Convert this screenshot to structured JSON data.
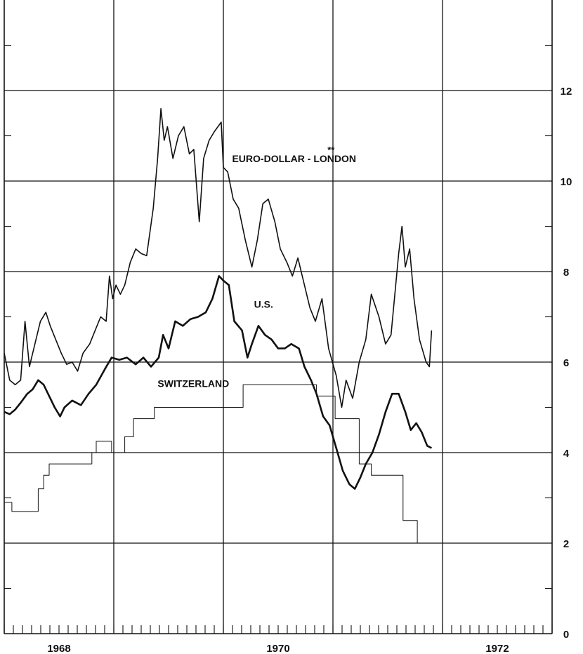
{
  "chart_data": {
    "type": "line",
    "title": "",
    "xlabel": "",
    "ylabel": "",
    "xlim": [
      1967.0,
      1972.0
    ],
    "ylim": [
      0,
      14
    ],
    "x_tick_labels": [
      {
        "label": "1968",
        "x": 1967.5
      },
      {
        "label": "1970",
        "x": 1969.5
      },
      {
        "label": "1972",
        "x": 1971.5
      }
    ],
    "y_tick_labels": [
      "0",
      "2",
      "4",
      "6",
      "8",
      "10",
      "12"
    ],
    "y_ticks": [
      0,
      2,
      4,
      6,
      8,
      10,
      12
    ],
    "grid": true,
    "series": [
      {
        "name": "EURO-DOLLAR - LONDON **",
        "stroke_width": 1.6,
        "points": [
          [
            1967.0,
            6.2
          ],
          [
            1967.05,
            5.6
          ],
          [
            1967.1,
            5.5
          ],
          [
            1967.15,
            5.6
          ],
          [
            1967.19,
            6.9
          ],
          [
            1967.23,
            5.9
          ],
          [
            1967.28,
            6.4
          ],
          [
            1967.33,
            6.9
          ],
          [
            1967.38,
            7.1
          ],
          [
            1967.42,
            6.8
          ],
          [
            1967.47,
            6.5
          ],
          [
            1967.52,
            6.2
          ],
          [
            1967.57,
            5.95
          ],
          [
            1967.62,
            6.0
          ],
          [
            1967.67,
            5.8
          ],
          [
            1967.72,
            6.2
          ],
          [
            1967.78,
            6.4
          ],
          [
            1967.83,
            6.7
          ],
          [
            1967.88,
            7.0
          ],
          [
            1967.93,
            6.9
          ],
          [
            1967.96,
            7.9
          ],
          [
            1967.99,
            7.4
          ],
          [
            1968.02,
            7.7
          ],
          [
            1968.06,
            7.5
          ],
          [
            1968.1,
            7.7
          ],
          [
            1968.15,
            8.2
          ],
          [
            1968.2,
            8.5
          ],
          [
            1968.25,
            8.4
          ],
          [
            1968.3,
            8.35
          ],
          [
            1968.36,
            9.4
          ],
          [
            1968.4,
            10.5
          ],
          [
            1968.43,
            11.6
          ],
          [
            1968.46,
            10.9
          ],
          [
            1968.49,
            11.2
          ],
          [
            1968.54,
            10.5
          ],
          [
            1968.59,
            11.0
          ],
          [
            1968.64,
            11.2
          ],
          [
            1968.69,
            10.6
          ],
          [
            1968.73,
            10.7
          ],
          [
            1968.78,
            9.1
          ],
          [
            1968.82,
            10.5
          ],
          [
            1968.87,
            10.9
          ],
          [
            1968.92,
            11.1
          ],
          [
            1968.98,
            11.3
          ],
          [
            1969.0,
            10.3
          ],
          [
            1969.04,
            10.2
          ],
          [
            1969.09,
            9.6
          ],
          [
            1969.14,
            9.4
          ],
          [
            1969.2,
            8.7
          ],
          [
            1969.26,
            8.1
          ],
          [
            1969.31,
            8.7
          ],
          [
            1969.36,
            9.5
          ],
          [
            1969.41,
            9.6
          ],
          [
            1969.47,
            9.1
          ],
          [
            1969.52,
            8.5
          ],
          [
            1969.58,
            8.2
          ],
          [
            1969.63,
            7.9
          ],
          [
            1969.68,
            8.3
          ],
          [
            1969.73,
            7.8
          ],
          [
            1969.79,
            7.2
          ],
          [
            1969.84,
            6.9
          ],
          [
            1969.9,
            7.4
          ],
          [
            1969.96,
            6.3
          ],
          [
            1970.03,
            5.7
          ],
          [
            1970.08,
            5.0
          ],
          [
            1970.12,
            5.6
          ],
          [
            1970.18,
            5.2
          ],
          [
            1970.24,
            6.0
          ],
          [
            1970.3,
            6.5
          ],
          [
            1970.35,
            7.5
          ],
          [
            1970.42,
            7.0
          ],
          [
            1970.48,
            6.4
          ],
          [
            1970.53,
            6.6
          ],
          [
            1970.6,
            8.4
          ],
          [
            1970.63,
            9.0
          ],
          [
            1970.66,
            8.1
          ],
          [
            1970.7,
            8.5
          ],
          [
            1970.74,
            7.4
          ],
          [
            1970.79,
            6.5
          ],
          [
            1970.85,
            6.0
          ],
          [
            1970.88,
            5.9
          ],
          [
            1970.9,
            6.7
          ]
        ]
      },
      {
        "name": "U.S.",
        "stroke_width": 2.6,
        "points": [
          [
            1967.0,
            4.9
          ],
          [
            1967.05,
            4.85
          ],
          [
            1967.1,
            4.95
          ],
          [
            1967.15,
            5.1
          ],
          [
            1967.21,
            5.3
          ],
          [
            1967.26,
            5.4
          ],
          [
            1967.31,
            5.6
          ],
          [
            1967.36,
            5.5
          ],
          [
            1967.41,
            5.25
          ],
          [
            1967.46,
            5.0
          ],
          [
            1967.51,
            4.8
          ],
          [
            1967.55,
            5.0
          ],
          [
            1967.62,
            5.15
          ],
          [
            1967.7,
            5.05
          ],
          [
            1967.77,
            5.3
          ],
          [
            1967.84,
            5.5
          ],
          [
            1967.92,
            5.85
          ],
          [
            1967.98,
            6.1
          ],
          [
            1968.05,
            6.05
          ],
          [
            1968.12,
            6.1
          ],
          [
            1968.2,
            5.95
          ],
          [
            1968.27,
            6.1
          ],
          [
            1968.34,
            5.9
          ],
          [
            1968.41,
            6.1
          ],
          [
            1968.45,
            6.6
          ],
          [
            1968.5,
            6.3
          ],
          [
            1968.56,
            6.9
          ],
          [
            1968.63,
            6.8
          ],
          [
            1968.7,
            6.95
          ],
          [
            1968.77,
            7.0
          ],
          [
            1968.84,
            7.1
          ],
          [
            1968.9,
            7.4
          ],
          [
            1968.96,
            7.9
          ],
          [
            1969.0,
            7.8
          ],
          [
            1969.05,
            7.7
          ],
          [
            1969.1,
            6.9
          ],
          [
            1969.17,
            6.7
          ],
          [
            1969.22,
            6.1
          ],
          [
            1969.26,
            6.4
          ],
          [
            1969.32,
            6.8
          ],
          [
            1969.38,
            6.6
          ],
          [
            1969.44,
            6.5
          ],
          [
            1969.5,
            6.3
          ],
          [
            1969.56,
            6.3
          ],
          [
            1969.62,
            6.4
          ],
          [
            1969.69,
            6.3
          ],
          [
            1969.74,
            5.9
          ],
          [
            1969.8,
            5.6
          ],
          [
            1969.85,
            5.3
          ],
          [
            1969.91,
            4.8
          ],
          [
            1969.97,
            4.6
          ],
          [
            1970.03,
            4.1
          ],
          [
            1970.09,
            3.6
          ],
          [
            1970.15,
            3.3
          ],
          [
            1970.2,
            3.2
          ],
          [
            1970.25,
            3.45
          ],
          [
            1970.3,
            3.75
          ],
          [
            1970.36,
            4.0
          ],
          [
            1970.42,
            4.4
          ],
          [
            1970.48,
            4.9
          ],
          [
            1970.54,
            5.3
          ],
          [
            1970.6,
            5.3
          ],
          [
            1970.66,
            4.9
          ],
          [
            1970.71,
            4.5
          ],
          [
            1970.76,
            4.65
          ],
          [
            1970.81,
            4.45
          ],
          [
            1970.86,
            4.15
          ],
          [
            1970.9,
            4.1
          ]
        ]
      },
      {
        "name": "SWITZERLAND",
        "stroke_width": 1.0,
        "points": [
          [
            1967.0,
            3.75
          ],
          [
            1967.0,
            2.9
          ],
          [
            1967.07,
            2.9
          ],
          [
            1967.07,
            2.7
          ],
          [
            1967.31,
            2.7
          ],
          [
            1967.31,
            3.2
          ],
          [
            1967.36,
            3.2
          ],
          [
            1967.36,
            3.5
          ],
          [
            1967.41,
            3.5
          ],
          [
            1967.41,
            3.75
          ],
          [
            1967.8,
            3.75
          ],
          [
            1967.8,
            4.0
          ],
          [
            1967.84,
            4.0
          ],
          [
            1967.84,
            4.25
          ],
          [
            1967.98,
            4.25
          ],
          [
            1967.98,
            4.0
          ],
          [
            1968.1,
            4.0
          ],
          [
            1968.1,
            4.35
          ],
          [
            1968.18,
            4.35
          ],
          [
            1968.18,
            4.75
          ],
          [
            1968.37,
            4.75
          ],
          [
            1968.37,
            5.0
          ],
          [
            1969.18,
            5.0
          ],
          [
            1969.18,
            5.5
          ],
          [
            1969.85,
            5.5
          ],
          [
            1969.85,
            5.25
          ],
          [
            1970.02,
            5.25
          ],
          [
            1970.02,
            4.75
          ],
          [
            1970.24,
            4.75
          ],
          [
            1970.24,
            3.75
          ],
          [
            1970.35,
            3.75
          ],
          [
            1970.35,
            3.5
          ],
          [
            1970.64,
            3.5
          ],
          [
            1970.64,
            2.5
          ],
          [
            1970.77,
            2.5
          ],
          [
            1970.77,
            2.0
          ],
          [
            1970.9,
            2.0
          ]
        ]
      }
    ],
    "annotations": [
      {
        "text": "EURO-DOLLAR - LONDON",
        "x": 1969.08,
        "y": 10.42
      },
      {
        "text": "**",
        "x": 1969.95,
        "y": 10.62
      },
      {
        "text": "U.S.",
        "x": 1969.28,
        "y": 7.2
      },
      {
        "text": "SWITZERLAND",
        "x": 1968.4,
        "y": 5.45
      }
    ]
  }
}
